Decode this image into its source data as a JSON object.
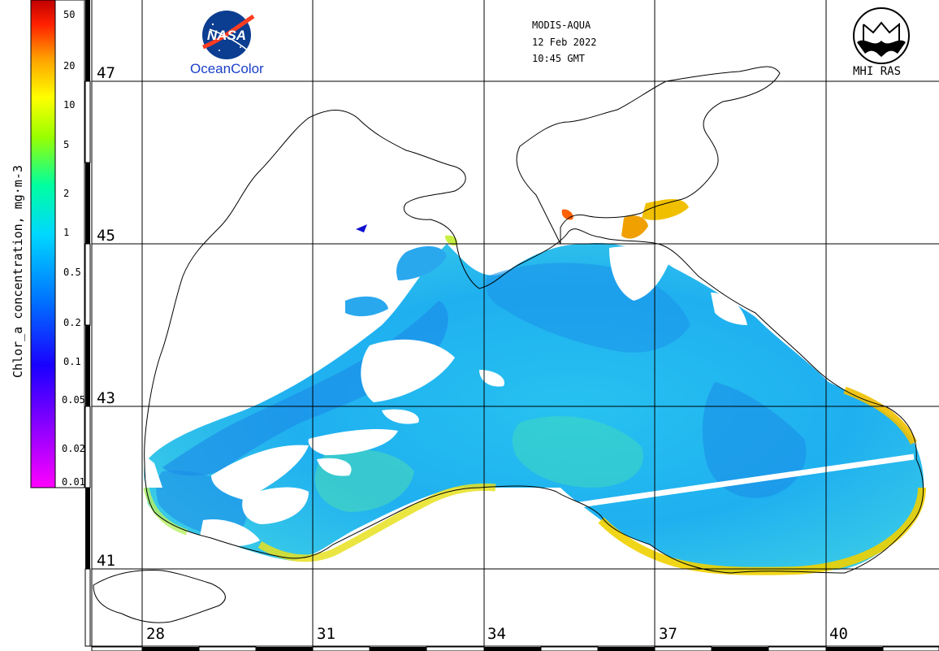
{
  "header": {
    "sensor": "MODIS-AQUA",
    "date": "12 Feb 2022",
    "time": "10:45 GMT"
  },
  "logos": {
    "nasa": {
      "name": "NASA",
      "caption": "OceanColor"
    },
    "institute": {
      "caption": "MHI RAS"
    }
  },
  "colorbar": {
    "title": "Chlor_a concentration, mg·m-3",
    "scale": "log",
    "range": [
      0.01,
      50
    ],
    "ticks": [
      "50",
      "20",
      "10",
      "5",
      "2",
      "1",
      "0.5",
      "0.2",
      "0.1",
      "0.05",
      "0.02",
      "0.01"
    ],
    "colors": [
      "#ff00ff",
      "#8a00ff",
      "#0000ff",
      "#0090ff",
      "#00e0ff",
      "#00ff99",
      "#80ff00",
      "#ffff00",
      "#ffa000",
      "#ff3000",
      "#c00000"
    ]
  },
  "grid": {
    "latitudes": [
      "47",
      "45",
      "43",
      "41"
    ],
    "longitudes": [
      "28",
      "31",
      "34",
      "37",
      "40"
    ]
  },
  "map": {
    "region": "Black Sea",
    "water_color": "#29b6f5",
    "coast_color": "#f0d000",
    "land_color": "#ffffff"
  }
}
